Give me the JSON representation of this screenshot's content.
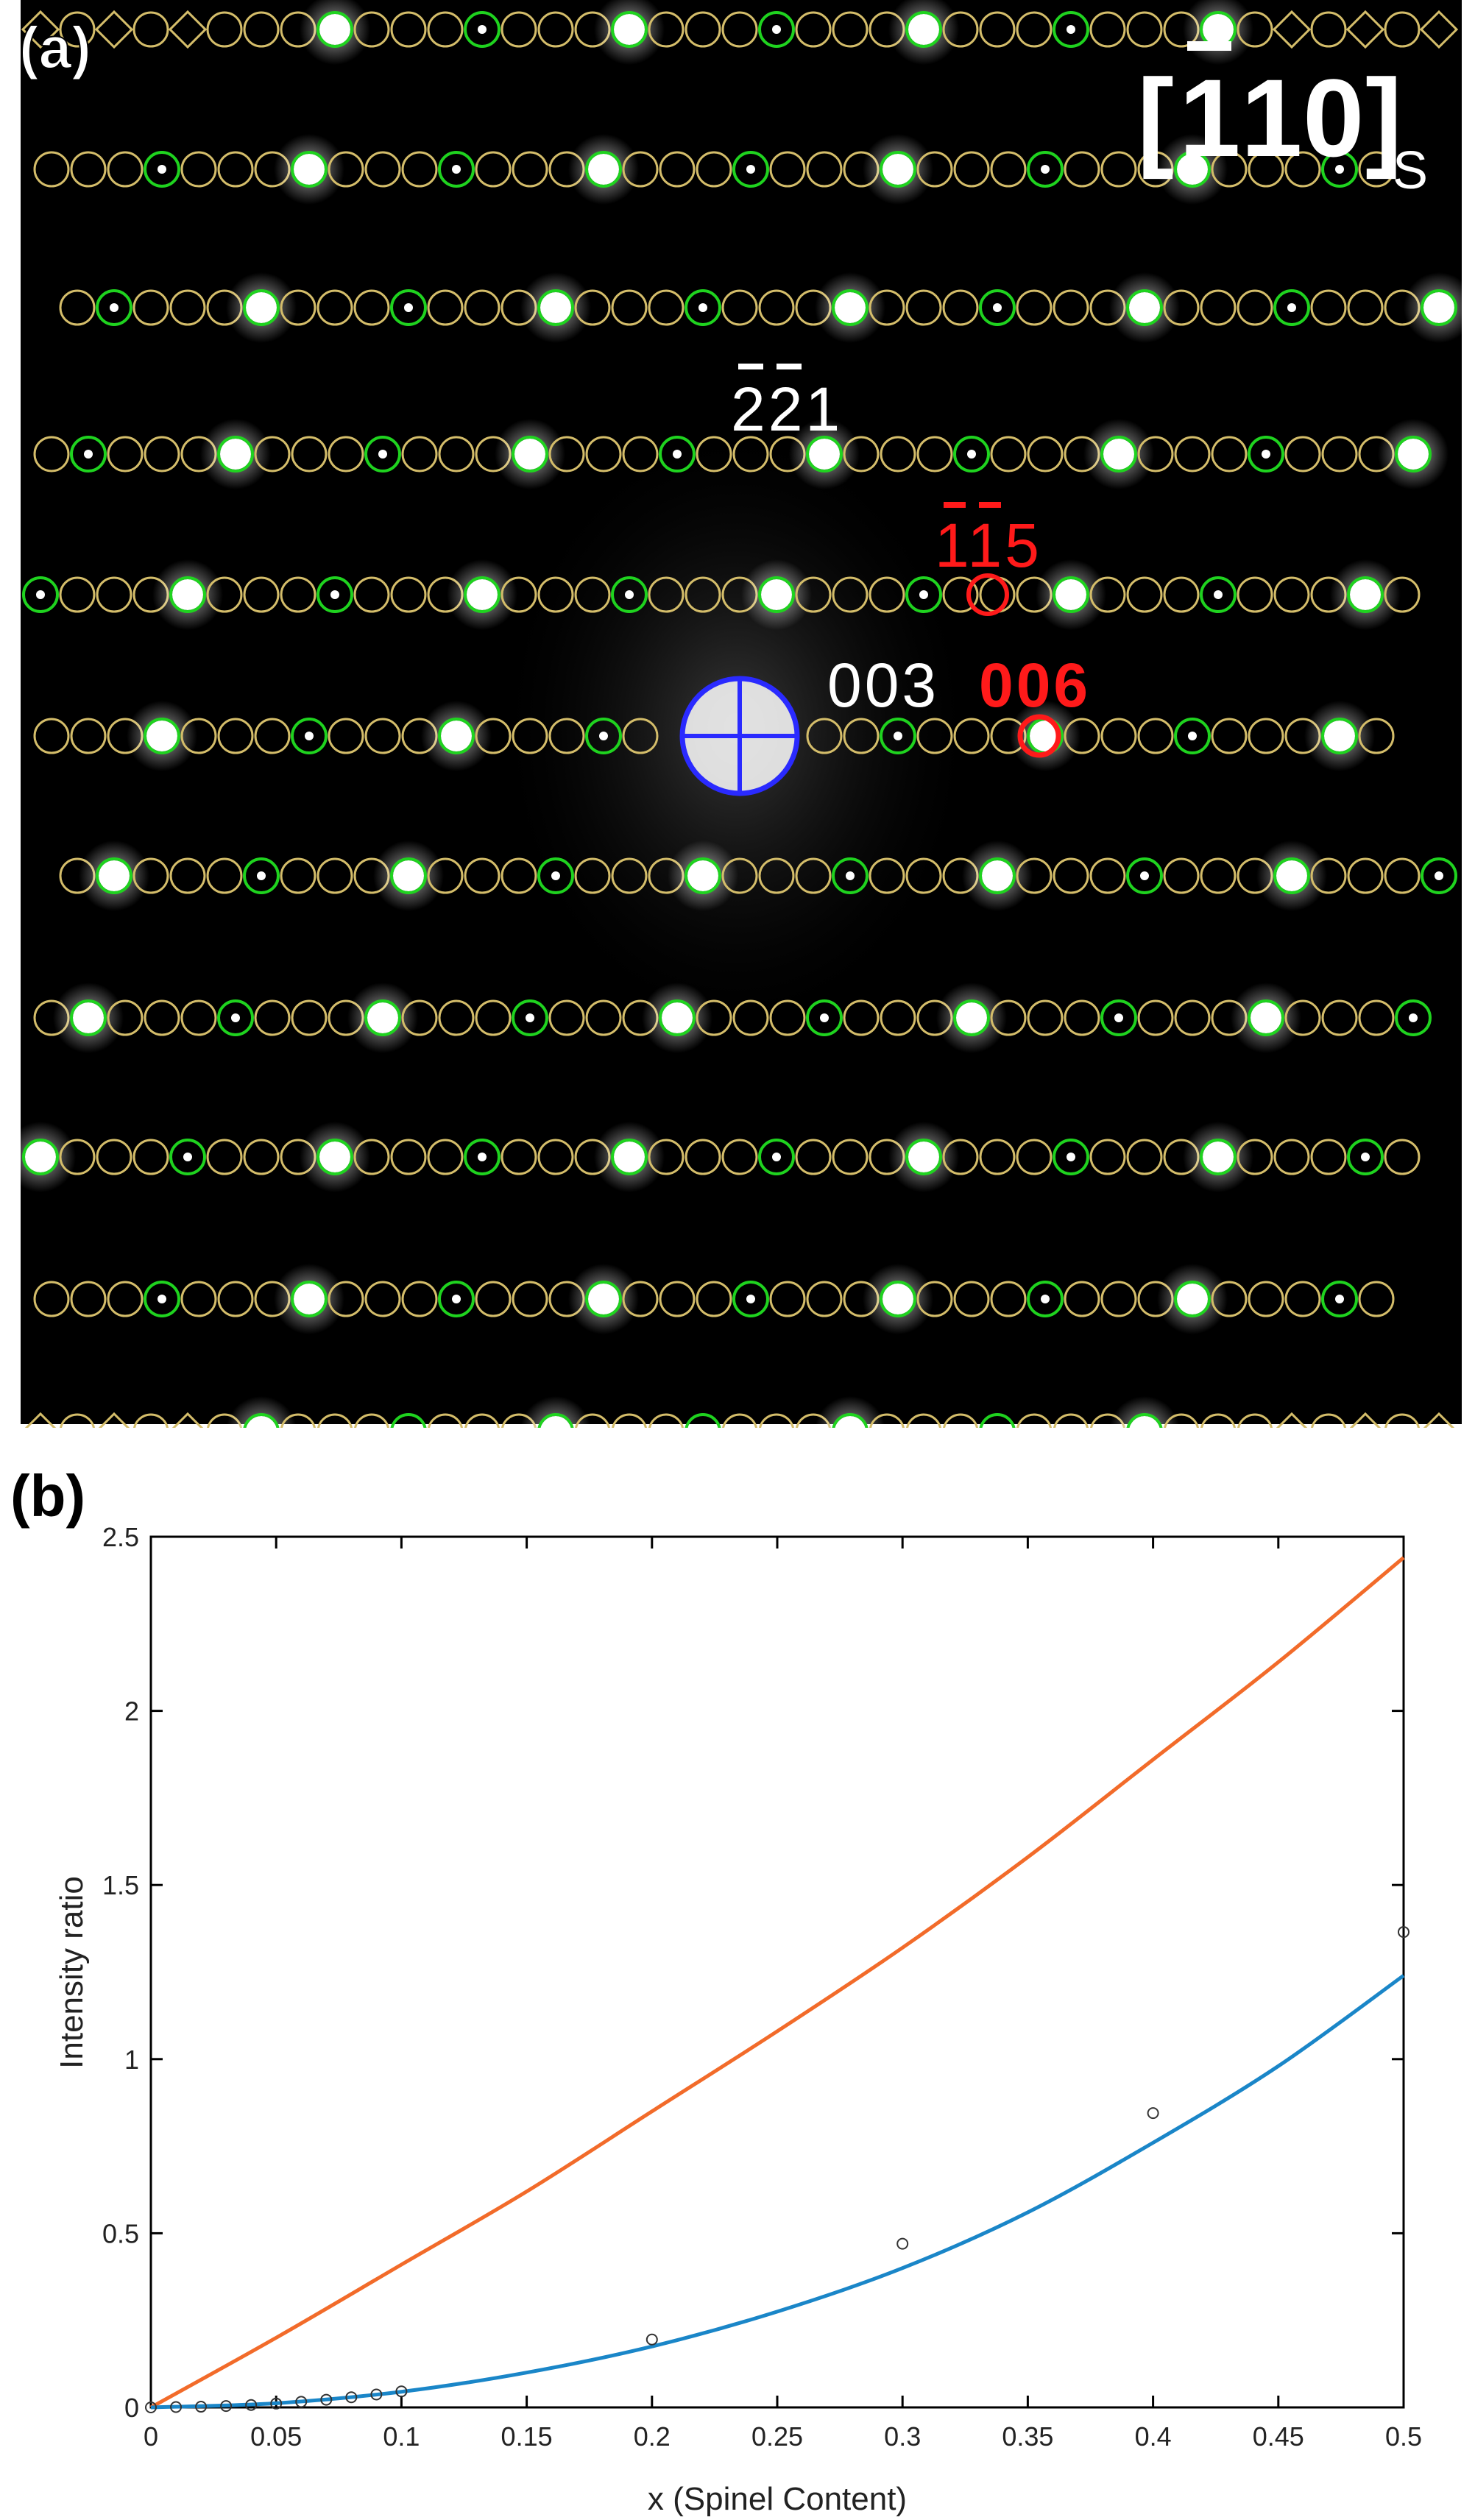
{
  "panel_a": {
    "label": "(a)",
    "zone_axis": {
      "bracket_open": "[",
      "digit1": "1",
      "digit2": "1",
      "digit3": "0",
      "bracket_close": "]",
      "subscript": "S",
      "overbar_on": "digit1"
    },
    "annotations": [
      {
        "text": "221",
        "overbars": [
          0,
          1
        ],
        "color": "#ffffff"
      },
      {
        "text": "115",
        "overbars": [
          0,
          1
        ],
        "color": "#ff1a1a"
      },
      {
        "text": "003",
        "overbars": [],
        "color": "#ffffff"
      },
      {
        "text": "006",
        "overbars": [],
        "color": "#ff1a1a"
      }
    ],
    "colors": {
      "background": "#000000",
      "simulated_ring": "#d4bd6a",
      "matched_ring": "#1fd31f",
      "highlight_ring": "#ff1a1a",
      "center_marker": "#2a2aff",
      "spot": "#ffffff"
    }
  },
  "panel_b": {
    "label": "(b)"
  },
  "chart_data": {
    "type": "line",
    "title": "",
    "xlabel": "x (Spinel Content)",
    "ylabel": "Intensity ratio",
    "xlim": [
      0,
      0.5
    ],
    "ylim": [
      0,
      2.5
    ],
    "xticks": [
      "0",
      "0.05",
      "0.1",
      "0.15",
      "0.2",
      "0.25",
      "0.3",
      "0.35",
      "0.4",
      "0.45",
      "0.5"
    ],
    "yticks": [
      "0",
      "0.5",
      "1",
      "1.5",
      "2",
      "2.5"
    ],
    "grid": false,
    "legend": "none",
    "series": [
      {
        "kind": "line",
        "color": "#f26b2a",
        "x": [
          0,
          0.05,
          0.1,
          0.15,
          0.2,
          0.25,
          0.3,
          0.35,
          0.4,
          0.45,
          0.5
        ],
        "y": [
          0,
          0.2,
          0.41,
          0.62,
          0.85,
          1.08,
          1.32,
          1.58,
          1.86,
          2.14,
          2.44
        ]
      },
      {
        "kind": "line",
        "color": "#1a86c8",
        "x": [
          0,
          0.05,
          0.1,
          0.15,
          0.2,
          0.25,
          0.3,
          0.35,
          0.4,
          0.45,
          0.5
        ],
        "y": [
          0,
          0.012,
          0.045,
          0.1,
          0.175,
          0.275,
          0.4,
          0.56,
          0.76,
          0.98,
          1.24
        ]
      },
      {
        "kind": "scatter",
        "color": "#333333",
        "x": [
          0,
          0.01,
          0.02,
          0.03,
          0.04,
          0.05,
          0.06,
          0.07,
          0.08,
          0.09,
          0.1,
          0.2,
          0.3,
          0.4,
          0.5
        ],
        "y": [
          0,
          0.001,
          0.002,
          0.004,
          0.007,
          0.011,
          0.016,
          0.022,
          0.029,
          0.037,
          0.046,
          0.195,
          0.47,
          0.845,
          1.365
        ]
      }
    ]
  }
}
